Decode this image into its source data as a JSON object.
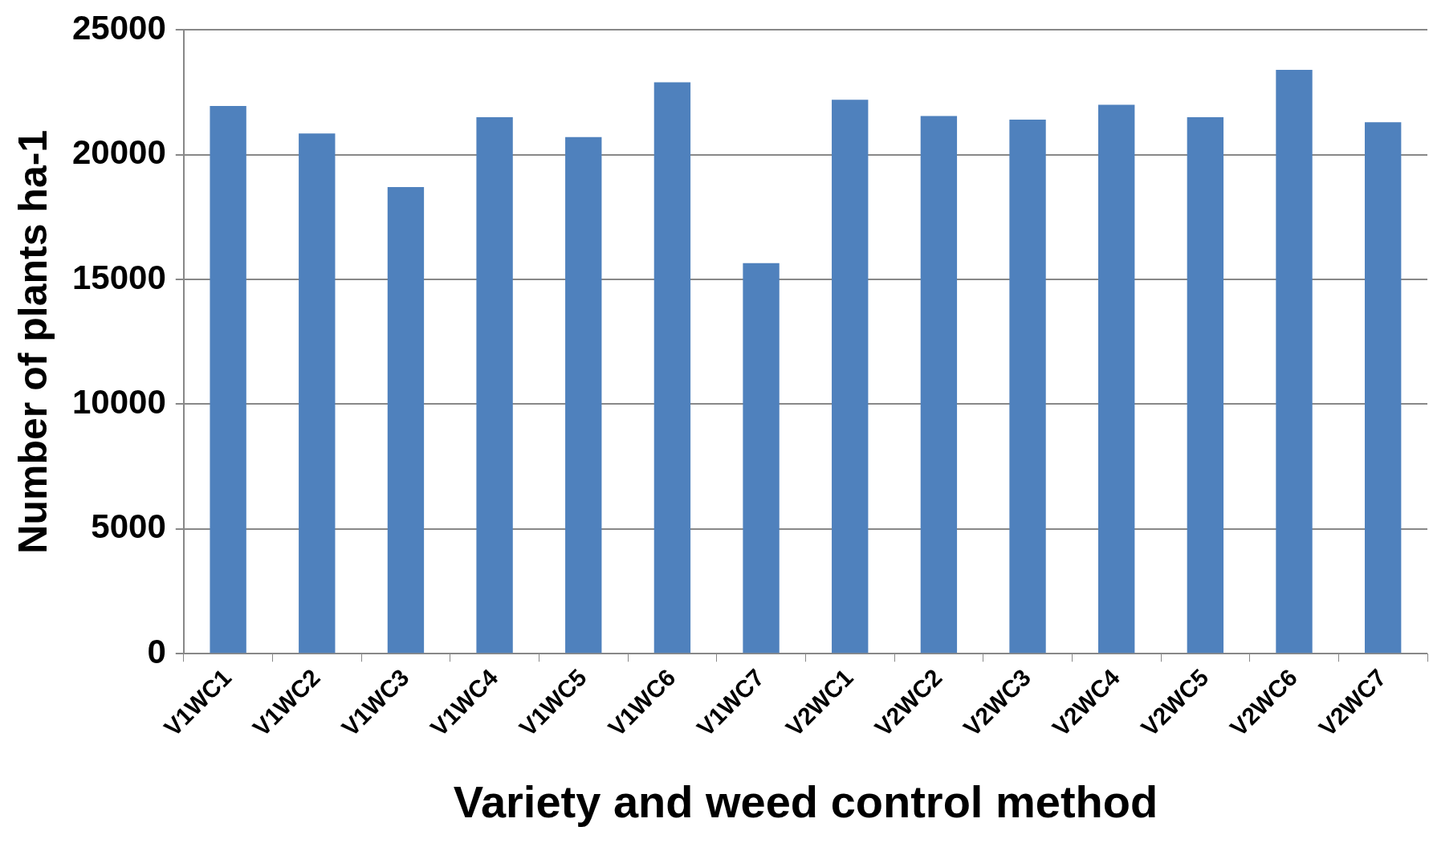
{
  "chart_data": {
    "type": "bar",
    "xlabel": "Variety and weed control method",
    "ylabel": "Number of plants ha-1",
    "categories": [
      "V1WC1",
      "V1WC2",
      "V1WC3",
      "V1WC4",
      "V1WC5",
      "V1WC6",
      "V1WC7",
      "V2WC1",
      "V2WC2",
      "V2WC3",
      "V2WC4",
      "V2WC5",
      "V2WC6",
      "V2WC7"
    ],
    "values": [
      21950,
      20850,
      18700,
      21500,
      20700,
      22900,
      15650,
      22200,
      21550,
      21400,
      22000,
      21500,
      23400,
      21300
    ],
    "color": "#4f81bd",
    "ylim": [
      0,
      25000
    ],
    "yticks": [
      0,
      5000,
      10000,
      15000,
      20000,
      25000
    ],
    "grid": "y",
    "legend": false
  }
}
